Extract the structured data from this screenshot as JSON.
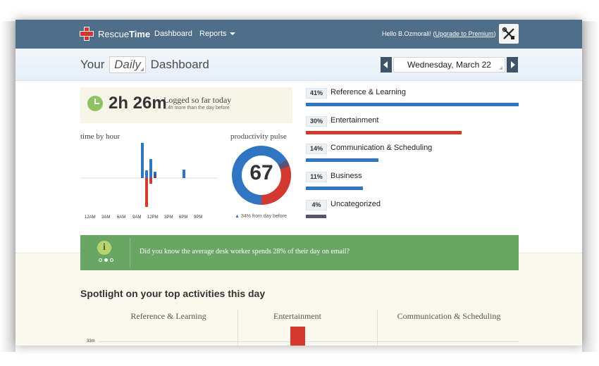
{
  "nav": {
    "brand_light": "Rescue",
    "brand_bold": "Time",
    "dashboard": "Dashboard",
    "reports": "Reports",
    "hello_prefix": "Hello B.Ozmorali! (",
    "upgrade": "Upgrade to Premium",
    "hello_suffix": ")",
    "tools_icon": "tools-icon"
  },
  "header": {
    "title_pre": "Your",
    "period": "Daily",
    "title_post": "Dashboard",
    "date": "Wednesday, March 22"
  },
  "logged": {
    "time": "2h 26m",
    "label": "Logged so far today",
    "sub": "2.4h more than the day before"
  },
  "time_by_hour": {
    "label": "time by hour",
    "ticks": [
      "12AM",
      "3AM",
      "6AM",
      "9AM",
      "12PM",
      "3PM",
      "6PM",
      "9PM"
    ]
  },
  "pulse": {
    "label": "productivity pulse",
    "score": "67",
    "change": "34% from day before"
  },
  "categories": [
    {
      "pct": "41%",
      "name": "Reference & Learning",
      "value": 41,
      "color": "#2f75c2"
    },
    {
      "pct": "30%",
      "name": "Entertainment",
      "value": 30,
      "color": "#d3392e"
    },
    {
      "pct": "14%",
      "name": "Communication & Scheduling",
      "value": 14,
      "color": "#2f75c2"
    },
    {
      "pct": "11%",
      "name": "Business",
      "value": 11,
      "color": "#2f75c2"
    },
    {
      "pct": "4%",
      "name": "Uncategorized",
      "value": 4,
      "color": "#5a5270"
    }
  ],
  "banner": {
    "text": "Did you know the average desk worker spends 28% of their day on email?"
  },
  "spotlight": {
    "title": "Spotlight on your top activities this day",
    "columns": [
      "Reference & Learning",
      "Entertainment",
      "Communication & Scheduling"
    ],
    "axis_label": "33m"
  },
  "colors": {
    "nav_bg": "#4f6e89",
    "productive": "#2f75c2",
    "distracting": "#d3392e",
    "banner": "#69a664"
  }
}
